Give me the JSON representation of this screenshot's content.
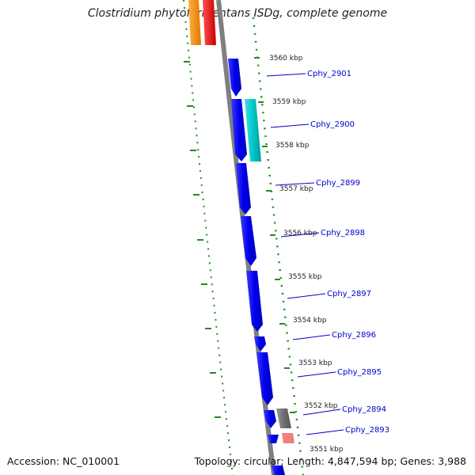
{
  "title": "Clostridium phytofermentans ISDg, complete genome",
  "footer": {
    "accession": "Accession: NC_010001",
    "topology": "Topology: circular; Length: 4,847,594 bp; Genes: 3,988"
  },
  "colors": {
    "cds": "#0000ee",
    "cds_alt": "#00c4c4",
    "backbone": "#808080",
    "gc_dots": "#228b22",
    "label": "#0000cc",
    "orange": "#ff9000",
    "red": "#ee0000",
    "gray_feature": "#707070",
    "pink_feature": "#f08080"
  },
  "ticks": [
    {
      "label": "3560 kbp"
    },
    {
      "label": "3559 kbp"
    },
    {
      "label": "3558 kbp"
    },
    {
      "label": "3557 kbp"
    },
    {
      "label": "3556 kbp"
    },
    {
      "label": "3555 kbp"
    },
    {
      "label": "3554 kbp"
    },
    {
      "label": "3553 kbp"
    },
    {
      "label": "3552 kbp"
    },
    {
      "label": "3551 kbp"
    }
  ],
  "genes": [
    {
      "label": "Cphy_2901"
    },
    {
      "label": "Cphy_2900"
    },
    {
      "label": "Cphy_2899"
    },
    {
      "label": "Cphy_2898"
    },
    {
      "label": "Cphy_2897"
    },
    {
      "label": "Cphy_2896"
    },
    {
      "label": "Cphy_2895"
    },
    {
      "label": "Cphy_2894"
    },
    {
      "label": "Cphy_2893"
    }
  ]
}
